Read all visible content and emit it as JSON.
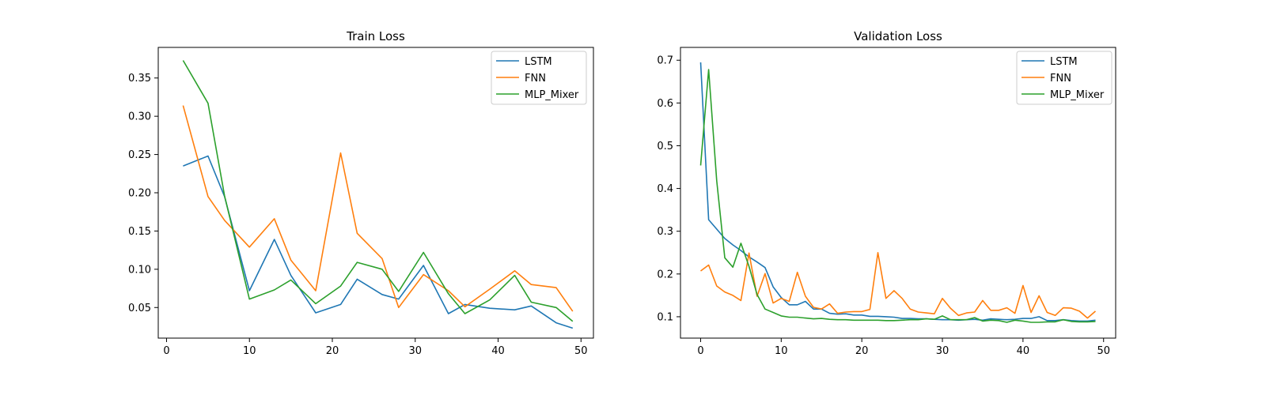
{
  "chart_data": [
    {
      "type": "line",
      "title": "Train Loss",
      "xlabel": "",
      "ylabel": "",
      "xlim": [
        -1,
        51.5
      ],
      "ylim": [
        0.01,
        0.39
      ],
      "xticks": [
        0,
        10,
        20,
        30,
        40,
        50
      ],
      "yticks": [
        0.05,
        0.1,
        0.15,
        0.2,
        0.25,
        0.3,
        0.35
      ],
      "ytick_labels": [
        "0.05",
        "0.10",
        "0.15",
        "0.20",
        "0.25",
        "0.30",
        "0.35"
      ],
      "grid": false,
      "legend": "top-right",
      "series": [
        {
          "name": "LSTM",
          "color": "#1f77b4",
          "x": [
            2,
            5,
            7,
            10,
            13,
            15,
            18,
            21,
            23,
            26,
            28,
            31,
            34,
            36,
            39,
            42,
            44,
            47,
            49
          ],
          "y": [
            0.235,
            0.248,
            0.195,
            0.072,
            0.139,
            0.092,
            0.043,
            0.054,
            0.087,
            0.067,
            0.061,
            0.105,
            0.042,
            0.054,
            0.049,
            0.047,
            0.052,
            0.03,
            0.023
          ]
        },
        {
          "name": "FNN",
          "color": "#ff7f0e",
          "x": [
            2,
            5,
            7,
            10,
            13,
            15,
            18,
            21,
            23,
            26,
            28,
            31,
            34,
            36,
            39,
            42,
            44,
            47,
            49
          ],
          "y": [
            0.314,
            0.195,
            0.164,
            0.129,
            0.166,
            0.112,
            0.072,
            0.252,
            0.147,
            0.114,
            0.05,
            0.093,
            0.072,
            0.051,
            0.074,
            0.098,
            0.08,
            0.076,
            0.045
          ]
        },
        {
          "name": "MLP_Mixer",
          "color": "#2ca02c",
          "x": [
            2,
            5,
            7,
            10,
            13,
            15,
            18,
            21,
            23,
            26,
            28,
            31,
            34,
            36,
            39,
            42,
            44,
            47,
            49
          ],
          "y": [
            0.373,
            0.317,
            0.196,
            0.061,
            0.073,
            0.086,
            0.055,
            0.078,
            0.109,
            0.1,
            0.071,
            0.122,
            0.068,
            0.042,
            0.06,
            0.092,
            0.057,
            0.05,
            0.032
          ]
        }
      ]
    },
    {
      "type": "line",
      "title": "Validation Loss",
      "xlabel": "",
      "ylabel": "",
      "xlim": [
        -2.5,
        51.5
      ],
      "ylim": [
        0.05,
        0.73
      ],
      "xticks": [
        0,
        10,
        20,
        30,
        40,
        50
      ],
      "yticks": [
        0.1,
        0.2,
        0.3,
        0.4,
        0.5,
        0.6,
        0.7
      ],
      "ytick_labels": [
        "0.1",
        "0.2",
        "0.3",
        "0.4",
        "0.5",
        "0.6",
        "0.7"
      ],
      "grid": false,
      "legend": "top-right",
      "series": [
        {
          "name": "LSTM",
          "color": "#1f77b4",
          "x": [
            0,
            1,
            2,
            3,
            4,
            5,
            6,
            7,
            8,
            9,
            10,
            11,
            12,
            13,
            14,
            15,
            16,
            17,
            18,
            19,
            20,
            21,
            22,
            23,
            24,
            25,
            26,
            27,
            28,
            29,
            30,
            31,
            32,
            33,
            34,
            35,
            36,
            37,
            38,
            39,
            40,
            41,
            42,
            43,
            44,
            45,
            46,
            47,
            48,
            49
          ],
          "y": [
            0.695,
            0.327,
            0.305,
            0.283,
            0.268,
            0.255,
            0.24,
            0.228,
            0.215,
            0.17,
            0.145,
            0.128,
            0.128,
            0.136,
            0.118,
            0.118,
            0.108,
            0.106,
            0.107,
            0.104,
            0.104,
            0.101,
            0.101,
            0.1,
            0.099,
            0.096,
            0.096,
            0.095,
            0.095,
            0.094,
            0.093,
            0.093,
            0.092,
            0.093,
            0.094,
            0.092,
            0.095,
            0.094,
            0.093,
            0.094,
            0.096,
            0.096,
            0.1,
            0.091,
            0.091,
            0.093,
            0.091,
            0.09,
            0.09,
            0.092
          ]
        },
        {
          "name": "FNN",
          "color": "#ff7f0e",
          "x": [
            0,
            1,
            2,
            3,
            4,
            5,
            6,
            7,
            8,
            9,
            10,
            11,
            12,
            13,
            14,
            15,
            16,
            17,
            18,
            19,
            20,
            21,
            22,
            23,
            24,
            25,
            26,
            27,
            28,
            29,
            30,
            31,
            32,
            33,
            34,
            35,
            36,
            37,
            38,
            39,
            40,
            41,
            42,
            43,
            44,
            45,
            46,
            47,
            48,
            49
          ],
          "y": [
            0.207,
            0.221,
            0.172,
            0.158,
            0.15,
            0.138,
            0.249,
            0.148,
            0.201,
            0.132,
            0.143,
            0.136,
            0.204,
            0.148,
            0.122,
            0.118,
            0.13,
            0.108,
            0.111,
            0.112,
            0.112,
            0.117,
            0.25,
            0.143,
            0.161,
            0.143,
            0.118,
            0.111,
            0.109,
            0.107,
            0.143,
            0.12,
            0.103,
            0.109,
            0.111,
            0.138,
            0.115,
            0.115,
            0.121,
            0.108,
            0.173,
            0.11,
            0.149,
            0.11,
            0.103,
            0.121,
            0.12,
            0.113,
            0.097,
            0.113
          ]
        },
        {
          "name": "MLP_Mixer",
          "color": "#2ca02c",
          "x": [
            0,
            1,
            2,
            3,
            4,
            5,
            6,
            7,
            8,
            9,
            10,
            11,
            12,
            13,
            14,
            15,
            16,
            17,
            18,
            19,
            20,
            21,
            22,
            23,
            24,
            25,
            26,
            27,
            28,
            29,
            30,
            31,
            32,
            33,
            34,
            35,
            36,
            37,
            38,
            39,
            40,
            41,
            42,
            43,
            44,
            45,
            46,
            47,
            48,
            49
          ],
          "y": [
            0.454,
            0.678,
            0.418,
            0.238,
            0.216,
            0.272,
            0.218,
            0.152,
            0.118,
            0.11,
            0.102,
            0.099,
            0.099,
            0.097,
            0.095,
            0.096,
            0.094,
            0.093,
            0.093,
            0.092,
            0.092,
            0.092,
            0.092,
            0.091,
            0.091,
            0.092,
            0.093,
            0.093,
            0.095,
            0.094,
            0.102,
            0.093,
            0.093,
            0.093,
            0.098,
            0.09,
            0.092,
            0.091,
            0.087,
            0.092,
            0.09,
            0.087,
            0.087,
            0.088,
            0.088,
            0.093,
            0.089,
            0.088,
            0.088,
            0.089
          ]
        }
      ]
    }
  ]
}
